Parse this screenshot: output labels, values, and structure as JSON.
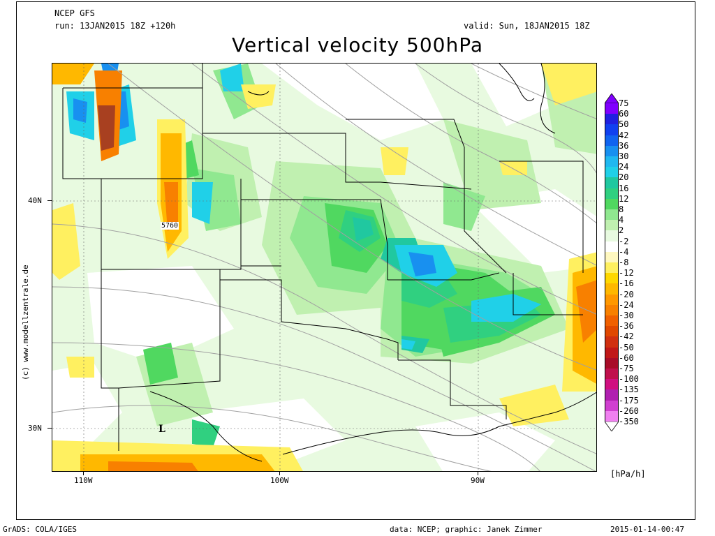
{
  "header": {
    "model": "NCEP GFS",
    "run": "run: 13JAN2015 18Z +120h",
    "valid": "valid: Sun, 18JAN2015 18Z",
    "title": "Vertical velocity 500hPa"
  },
  "map": {
    "lat_labels": [
      "40N",
      "30N"
    ],
    "lon_labels": [
      "110W",
      "100W",
      "90W"
    ],
    "contour_label": "5760",
    "low_marker": "L",
    "side_credit": "(c) www.modellzentrale.de"
  },
  "legend": {
    "unit": "[hPa/h]",
    "levels": [
      "75",
      "60",
      "50",
      "42",
      "36",
      "30",
      "24",
      "20",
      "16",
      "12",
      "8",
      "4",
      "2",
      "-2",
      "-4",
      "-8",
      "-12",
      "-16",
      "-20",
      "-24",
      "-30",
      "-36",
      "-42",
      "-50",
      "-60",
      "-75",
      "-100",
      "-135",
      "-175",
      "-260",
      "-350"
    ],
    "colors": [
      "#8000ff",
      "#2020e0",
      "#1040f0",
      "#1064f0",
      "#1890f0",
      "#20b8f0",
      "#20d0e8",
      "#20c8a0",
      "#30d080",
      "#50d860",
      "#90e890",
      "#c0f0b0",
      "#e8fae0",
      "#ffffff",
      "#fff8c0",
      "#fff060",
      "#ffd800",
      "#ffb800",
      "#ff9800",
      "#f88000",
      "#f06000",
      "#e04800",
      "#d03010",
      "#c01818",
      "#a80c28",
      "#c0104c",
      "#d01080",
      "#b020b0",
      "#d040d0",
      "#f080f0",
      "#ffd0ff"
    ],
    "top_arrow_color": "#8000ff",
    "bottom_arrow_color": "#ffffff"
  },
  "footer": {
    "left": "GrADS: COLA/IGES",
    "center": "data: NCEP; graphic: Janek Zimmer",
    "right": "2015-01-14-00:47"
  }
}
